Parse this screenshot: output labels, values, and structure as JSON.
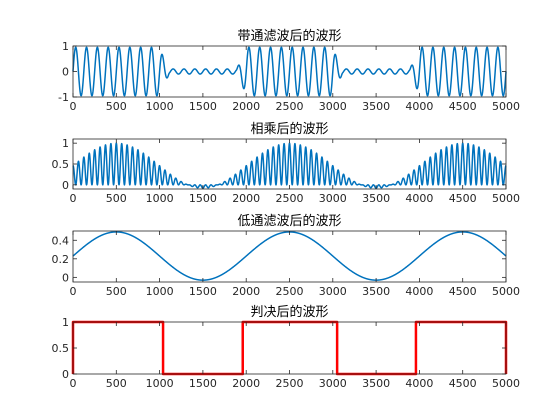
{
  "chart_data": [
    {
      "type": "line",
      "title": "带通滤波后的波形",
      "xlabel": "",
      "ylabel": "",
      "xlim": [
        0,
        5000
      ],
      "ylim": [
        -1,
        1
      ],
      "x_ticks": [
        0,
        500,
        1000,
        1500,
        2000,
        2500,
        3000,
        3500,
        4000,
        4500,
        5000
      ],
      "y_ticks": [
        -1,
        0,
        1
      ],
      "grid": false,
      "series": [
        {
          "color": "#0072BD",
          "line_width": 1.5,
          "description_values": {
            "carrier_period_samples": 125,
            "high_amplitude": 0.95,
            "low_amplitude": 0.1,
            "high_intervals": [
              [
                0,
                1050
              ],
              [
                1950,
                3050
              ],
              [
                3950,
                5000
              ]
            ],
            "low_intervals": [
              [
                1050,
                1950
              ],
              [
                3050,
                3950
              ]
            ]
          }
        }
      ]
    },
    {
      "type": "line",
      "title": "相乘后的波形",
      "xlabel": "",
      "ylabel": "",
      "xlim": [
        0,
        5000
      ],
      "ylim": [
        -0.1,
        1.1
      ],
      "x_ticks": [
        0,
        500,
        1000,
        1500,
        2000,
        2500,
        3000,
        3500,
        4000,
        4500,
        5000
      ],
      "y_ticks": [
        0,
        0.5,
        1
      ],
      "grid": false,
      "series": [
        {
          "color": "#0072BD",
          "line_width": 1.5,
          "description_values": {
            "ripple_period_samples": 62.5,
            "envelope_period_samples": 2000,
            "envelope_peaks": [
              500,
              2500,
              4500
            ],
            "envelope_troughs": [
              1500,
              3500
            ],
            "envelope_max": 1.0,
            "envelope_min": -0.08
          }
        }
      ]
    },
    {
      "type": "line",
      "title": "低通滤波后的波形",
      "xlabel": "",
      "ylabel": "",
      "xlim": [
        0,
        5000
      ],
      "ylim": [
        -0.05,
        0.5
      ],
      "x_ticks": [
        0,
        500,
        1000,
        1500,
        2000,
        2500,
        3000,
        3500,
        4000,
        4500,
        5000
      ],
      "y_ticks": [
        0,
        0.2,
        0.4
      ],
      "grid": false,
      "series": [
        {
          "color": "#0072BD",
          "line_width": 1.5,
          "description_values": {
            "period_samples": 2000,
            "peaks_x": [
              500,
              2500,
              4500
            ],
            "troughs_x": [
              1500,
              3500
            ],
            "max": 0.49,
            "min": -0.03
          }
        }
      ]
    },
    {
      "type": "line",
      "title": "判决后的波形",
      "xlabel": "",
      "ylabel": "",
      "xlim": [
        0,
        5000
      ],
      "ylim": [
        0,
        1
      ],
      "x_ticks": [
        0,
        500,
        1000,
        1500,
        2000,
        2500,
        3000,
        3500,
        4000,
        4500,
        5000
      ],
      "y_ticks": [
        0,
        0.5,
        1
      ],
      "grid": false,
      "series": [
        {
          "color": "#FF0000",
          "line_width": 2.5,
          "x": [
            0,
            0,
            1040,
            1040,
            1960,
            1960,
            3050,
            3050,
            3960,
            3960,
            5000,
            5000
          ],
          "y": [
            0,
            1,
            1,
            0,
            0,
            1,
            1,
            0,
            0,
            1,
            1,
            0
          ]
        }
      ]
    }
  ]
}
